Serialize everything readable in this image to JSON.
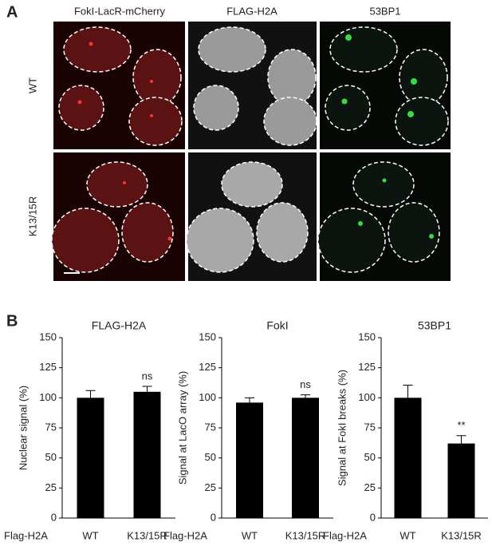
{
  "panel_a": {
    "label": "A",
    "columns": [
      "FokI-LacR-mCherry",
      "FLAG-H2A",
      "53BP1"
    ],
    "rows": [
      "WT",
      "K13/15R"
    ]
  },
  "panel_b": {
    "label": "B"
  },
  "chart_data": [
    {
      "type": "bar",
      "title": "FLAG-H2A",
      "y_label": "Nuclear signal (%)",
      "x_label": "Flag-H2A",
      "categories": [
        "WT",
        "K13/15R"
      ],
      "values": [
        100,
        105
      ],
      "errors": [
        6,
        4.5
      ],
      "value_annotations": [
        null,
        "ns"
      ],
      "color": "#000000",
      "ylim": [
        0,
        150
      ],
      "yticks": [
        0,
        25,
        50,
        75,
        100,
        125,
        150
      ]
    },
    {
      "type": "bar",
      "title": "FokI",
      "y_label": "Signal at LacO array (%)",
      "x_label": "Flag-H2A",
      "categories": [
        "WT",
        "K13/15R"
      ],
      "values": [
        96,
        100
      ],
      "errors": [
        4,
        2.5
      ],
      "value_annotations": [
        null,
        "ns"
      ],
      "color": "#000000",
      "ylim": [
        0,
        150
      ],
      "yticks": [
        0,
        25,
        50,
        75,
        100,
        125,
        150
      ]
    },
    {
      "type": "bar",
      "title": "53BP1",
      "y_label": "Signal at FokI breaks (%)",
      "x_label": "Flag-H2A",
      "categories": [
        "WT",
        "K13/15R"
      ],
      "values": [
        100,
        62
      ],
      "errors": [
        10.5,
        6.5
      ],
      "value_annotations": [
        null,
        "**"
      ],
      "color": "#000000",
      "ylim": [
        0,
        150
      ],
      "yticks": [
        0,
        25,
        50,
        75,
        100,
        125,
        150
      ]
    }
  ]
}
